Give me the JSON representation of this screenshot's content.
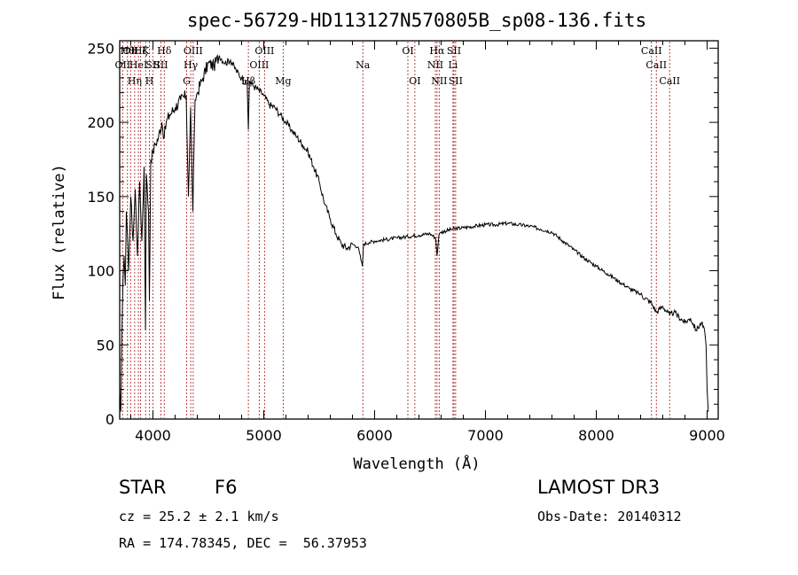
{
  "chart_data": {
    "type": "line",
    "title": "spec-56729-HD113127N570805B_sp08-136.fits",
    "xlabel": "Wavelength (Å)",
    "ylabel": "Flux (relative)",
    "xlim": [
      3700,
      9100
    ],
    "ylim": [
      0,
      255
    ],
    "xticks": [
      4000,
      5000,
      6000,
      7000,
      8000,
      9000
    ],
    "yticks": [
      0,
      50,
      100,
      150,
      200,
      250
    ],
    "series": [
      {
        "name": "flux",
        "x": [
          3700,
          3710,
          3720,
          3730,
          3740,
          3750,
          3760,
          3780,
          3800,
          3820,
          3840,
          3860,
          3880,
          3900,
          3920,
          3933,
          3940,
          3960,
          3968,
          3980,
          4000,
          4020,
          4050,
          4080,
          4102,
          4120,
          4150,
          4200,
          4250,
          4300,
          4320,
          4340,
          4360,
          4380,
          4400,
          4450,
          4500,
          4550,
          4600,
          4650,
          4700,
          4750,
          4800,
          4850,
          4861,
          4870,
          4900,
          4950,
          5000,
          5050,
          5100,
          5150,
          5200,
          5250,
          5300,
          5350,
          5400,
          5450,
          5500,
          5550,
          5600,
          5650,
          5700,
          5750,
          5800,
          5850,
          5890,
          5900,
          5950,
          6000,
          6100,
          6200,
          6300,
          6400,
          6500,
          6550,
          6563,
          6580,
          6600,
          6700,
          6800,
          6900,
          7000,
          7100,
          7200,
          7300,
          7400,
          7500,
          7600,
          7700,
          7800,
          7900,
          8000,
          8100,
          8200,
          8300,
          8400,
          8500,
          8542,
          8600,
          8662,
          8700,
          8800,
          8850,
          8900,
          8950,
          8980,
          8990,
          9000,
          9010
        ],
        "y": [
          20,
          5,
          60,
          95,
          110,
          90,
          140,
          100,
          150,
          120,
          155,
          110,
          160,
          120,
          170,
          60,
          165,
          140,
          80,
          175,
          180,
          185,
          190,
          200,
          190,
          200,
          205,
          210,
          215,
          218,
          150,
          210,
          140,
          215,
          220,
          230,
          240,
          238,
          245,
          240,
          242,
          235,
          230,
          225,
          195,
          228,
          225,
          222,
          218,
          212,
          210,
          205,
          200,
          195,
          190,
          185,
          180,
          170,
          160,
          145,
          135,
          125,
          118,
          115,
          118,
          116,
          103,
          118,
          119,
          120,
          121,
          122,
          123,
          124,
          125,
          122,
          110,
          124,
          126,
          128,
          129,
          130,
          131,
          131,
          132,
          131,
          130,
          128,
          126,
          120,
          114,
          108,
          103,
          98,
          93,
          88,
          84,
          78,
          72,
          76,
          70,
          72,
          65,
          68,
          60,
          65,
          58,
          50,
          20,
          5
        ]
      }
    ],
    "lines": [
      {
        "wave": 3727,
        "label": "OII",
        "row": 2
      },
      {
        "wave": 3770,
        "label": "Hθ",
        "row": 1
      },
      {
        "wave": 3798,
        "label": "OII",
        "row": 1
      },
      {
        "wave": 3835,
        "label": "Hη",
        "row": 3
      },
      {
        "wave": 3869,
        "label": "HeI",
        "row": 2
      },
      {
        "wave": 3889,
        "label": "Hζ",
        "row": 1
      },
      {
        "wave": 3934,
        "label": "K",
        "row": 1
      },
      {
        "wave": 3968,
        "label": "H",
        "row": 3
      },
      {
        "wave": 4000,
        "label": "SII",
        "row": 2
      },
      {
        "wave": 4072,
        "label": "SII",
        "row": 2
      },
      {
        "wave": 4102,
        "label": "Hδ",
        "row": 1
      },
      {
        "wave": 4304,
        "label": "G",
        "row": 3
      },
      {
        "wave": 4341,
        "label": "Hγ",
        "row": 2
      },
      {
        "wave": 4363,
        "label": "OIII",
        "row": 1
      },
      {
        "wave": 4861,
        "label": "Hβ",
        "row": 3
      },
      {
        "wave": 4959,
        "label": "OIII",
        "row": 2
      },
      {
        "wave": 5007,
        "label": "OIII",
        "row": 1
      },
      {
        "wave": 5175,
        "label": "Mg",
        "row": 3
      },
      {
        "wave": 5894,
        "label": "Na",
        "row": 2
      },
      {
        "wave": 6300,
        "label": "OI",
        "row": 1
      },
      {
        "wave": 6363,
        "label": "OI",
        "row": 3
      },
      {
        "wave": 6548,
        "label": "NII",
        "row": 2
      },
      {
        "wave": 6563,
        "label": "Hα",
        "row": 1
      },
      {
        "wave": 6583,
        "label": "NII",
        "row": 3
      },
      {
        "wave": 6707,
        "label": "Li",
        "row": 2
      },
      {
        "wave": 6716,
        "label": "SII",
        "row": 1
      },
      {
        "wave": 6731,
        "label": "SII",
        "row": 3
      },
      {
        "wave": 8498,
        "label": "CaII",
        "row": 1
      },
      {
        "wave": 8542,
        "label": "CaII",
        "row": 2
      },
      {
        "wave": 8662,
        "label": "CaII",
        "row": 3
      }
    ]
  },
  "info": {
    "object_class": "STAR",
    "subclass": "F6",
    "survey": "LAMOST DR3",
    "redshift": "cz = 25.2 ± 2.1 km/s",
    "obs_date": "Obs-Date: 20140312",
    "coords": "RA = 174.78345, DEC =  56.37953"
  },
  "colors": {
    "line_marker": "#b03030",
    "spectrum": "#000000"
  }
}
